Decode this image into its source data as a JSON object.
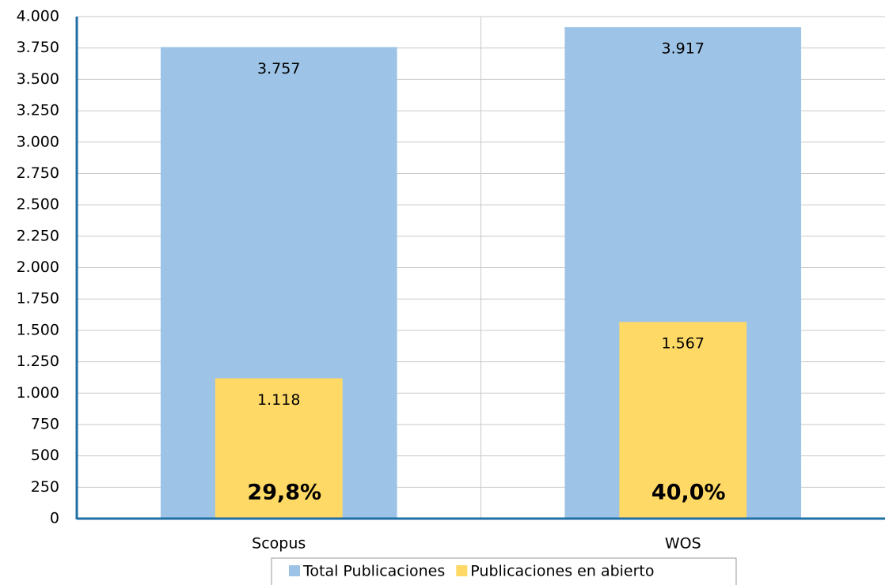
{
  "chart_data": {
    "type": "bar",
    "categories": [
      "Scopus",
      "WOS"
    ],
    "series": [
      {
        "name": "Total Publicaciones",
        "color": "#9dc3e6",
        "values": [
          3757,
          3917
        ],
        "value_labels": [
          "3.757",
          "3.917"
        ]
      },
      {
        "name": "Publicaciones en abierto",
        "color": "#ffd966",
        "values": [
          1118,
          1567
        ],
        "value_labels": [
          "1.118",
          "1.567"
        ]
      }
    ],
    "annotations": [
      "29,8%",
      "40,0%"
    ],
    "ylim": [
      0,
      4000
    ],
    "yticks": [
      0,
      250,
      500,
      750,
      {
        "value": 1000,
        "label": "1.000"
      },
      {
        "value": 1250,
        "label": "1.250"
      },
      {
        "value": 1500,
        "label": "1.500"
      },
      {
        "value": 1750,
        "label": "1.750"
      },
      {
        "value": 2000,
        "label": "2.000"
      },
      {
        "value": 2250,
        "label": "2.250"
      },
      {
        "value": 2500,
        "label": "2.500"
      },
      {
        "value": 2750,
        "label": "2.750"
      },
      {
        "value": 3000,
        "label": "3.000"
      },
      {
        "value": 3250,
        "label": "3.250"
      },
      {
        "value": 3500,
        "label": "3.500"
      },
      {
        "value": 3750,
        "label": "3.750"
      },
      {
        "value": 4000,
        "label": "4.000"
      }
    ],
    "grid": true,
    "legend": "bottom"
  }
}
